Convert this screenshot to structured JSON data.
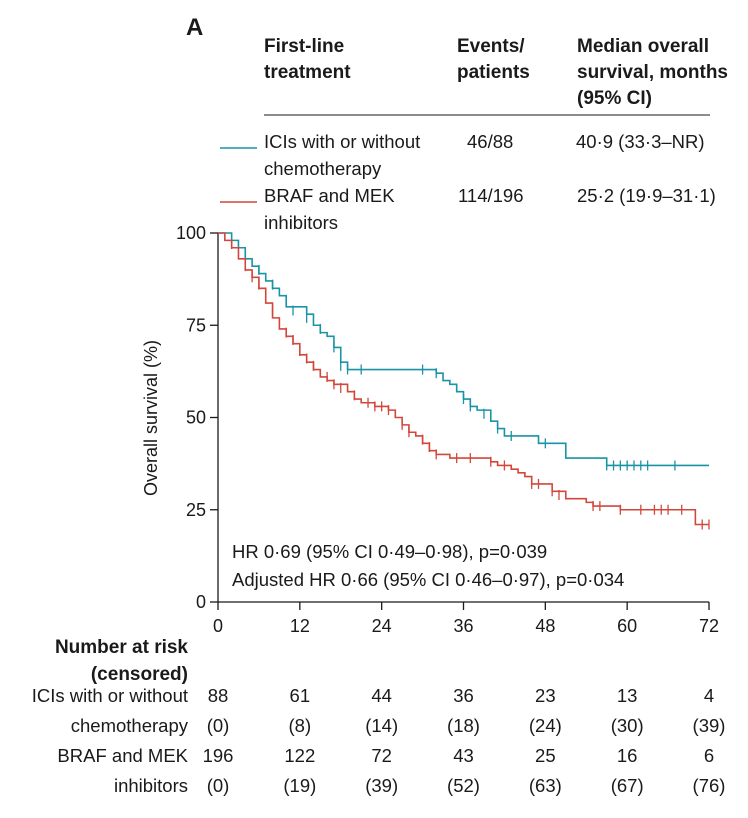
{
  "panel_label": "A",
  "table_header": {
    "treatment": [
      "First-line",
      "treatment"
    ],
    "events": [
      "Events/",
      "patients"
    ],
    "median": [
      "Median overall",
      "survival, months",
      "(95% CI)"
    ]
  },
  "legend": [
    {
      "label": [
        "ICIs with or without",
        "chemotherapy"
      ],
      "events": "46/88",
      "median": "40·9 (33·3–NR)",
      "color": "#1a93a6"
    },
    {
      "label": [
        "BRAF and MEK",
        "inhibitors"
      ],
      "events": "114/196",
      "median": "25·2 (19·9–31·1)",
      "color": "#d2473c"
    }
  ],
  "stats": {
    "hr": "HR 0·69 (95% CI 0·49–0·98), p=0·039",
    "adjusted_hr": "Adjusted HR 0·66 (95% CI 0·46–0·97), p=0·034"
  },
  "chart_data": {
    "type": "line",
    "subtype": "kaplan-meier",
    "ylabel": "Overall survival (%)",
    "xlabel": "",
    "xlim": [
      0,
      72
    ],
    "ylim": [
      0,
      100
    ],
    "x_ticks": [
      0,
      12,
      24,
      36,
      48,
      60,
      72
    ],
    "y_ticks": [
      0,
      25,
      50,
      75,
      100
    ],
    "series": [
      {
        "name": "ICIs with or without chemotherapy",
        "color": "#1a93a6",
        "steps": [
          [
            0,
            100
          ],
          [
            2,
            98
          ],
          [
            3,
            96
          ],
          [
            4,
            93
          ],
          [
            5,
            91
          ],
          [
            6,
            89
          ],
          [
            7,
            87
          ],
          [
            8,
            85
          ],
          [
            9,
            83
          ],
          [
            10,
            80
          ],
          [
            13,
            78
          ],
          [
            14,
            75
          ],
          [
            15,
            73
          ],
          [
            16,
            72
          ],
          [
            17,
            69
          ],
          [
            18,
            65
          ],
          [
            19,
            63
          ],
          [
            20,
            63
          ],
          [
            31,
            63
          ],
          [
            32,
            62
          ],
          [
            33,
            60
          ],
          [
            34,
            59
          ],
          [
            35,
            57
          ],
          [
            36,
            55
          ],
          [
            37,
            53
          ],
          [
            38,
            52
          ],
          [
            40,
            49
          ],
          [
            41,
            47
          ],
          [
            42,
            45
          ],
          [
            46,
            45
          ],
          [
            47,
            43
          ],
          [
            50,
            43
          ],
          [
            51,
            39
          ],
          [
            56,
            39
          ],
          [
            57,
            37
          ],
          [
            72,
            37
          ]
        ],
        "censored": [
          [
            6,
            90
          ],
          [
            8,
            86
          ],
          [
            11,
            79
          ],
          [
            13,
            77
          ],
          [
            15,
            74
          ],
          [
            17,
            69
          ],
          [
            18,
            64
          ],
          [
            19,
            63
          ],
          [
            21,
            63
          ],
          [
            30,
            63
          ],
          [
            32,
            62
          ],
          [
            36,
            55
          ],
          [
            37,
            53
          ],
          [
            39,
            51
          ],
          [
            41,
            47
          ],
          [
            43,
            45
          ],
          [
            48,
            43
          ],
          [
            51,
            41
          ],
          [
            57,
            37
          ],
          [
            58,
            37
          ],
          [
            59,
            37
          ],
          [
            60,
            37
          ],
          [
            61,
            37
          ],
          [
            62,
            37
          ],
          [
            63,
            37
          ],
          [
            67,
            37
          ]
        ]
      },
      {
        "name": "BRAF and MEK inhibitors",
        "color": "#d2473c",
        "steps": [
          [
            0,
            100
          ],
          [
            1,
            98
          ],
          [
            2,
            96
          ],
          [
            3,
            93
          ],
          [
            4,
            90
          ],
          [
            5,
            88
          ],
          [
            6,
            85
          ],
          [
            7,
            81
          ],
          [
            8,
            77
          ],
          [
            9,
            74
          ],
          [
            10,
            72
          ],
          [
            11,
            70
          ],
          [
            12,
            67
          ],
          [
            13,
            65
          ],
          [
            14,
            63
          ],
          [
            15,
            61
          ],
          [
            16,
            60
          ],
          [
            17,
            59
          ],
          [
            19,
            57
          ],
          [
            20,
            55
          ],
          [
            21,
            54
          ],
          [
            23,
            53
          ],
          [
            24,
            53
          ],
          [
            25,
            52
          ],
          [
            26,
            50
          ],
          [
            27,
            48
          ],
          [
            28,
            46
          ],
          [
            29,
            45
          ],
          [
            30,
            43
          ],
          [
            31,
            41
          ],
          [
            32,
            40
          ],
          [
            33,
            40
          ],
          [
            34,
            39
          ],
          [
            39,
            39
          ],
          [
            40,
            38
          ],
          [
            41,
            37
          ],
          [
            43,
            36
          ],
          [
            44,
            35
          ],
          [
            45,
            34
          ],
          [
            46,
            32
          ],
          [
            48,
            32
          ],
          [
            49,
            30
          ],
          [
            51,
            28
          ],
          [
            54,
            27
          ],
          [
            55,
            26
          ],
          [
            58,
            26
          ],
          [
            59,
            25
          ],
          [
            69,
            25
          ],
          [
            70,
            21
          ],
          [
            72,
            21
          ]
        ],
        "censored": [
          [
            2,
            97
          ],
          [
            4,
            91
          ],
          [
            5,
            88
          ],
          [
            6,
            86
          ],
          [
            7,
            83
          ],
          [
            8,
            79
          ],
          [
            10,
            73
          ],
          [
            11,
            71
          ],
          [
            12,
            68
          ],
          [
            13,
            66
          ],
          [
            14,
            64
          ],
          [
            16,
            61
          ],
          [
            17,
            59
          ],
          [
            18,
            58
          ],
          [
            20,
            56
          ],
          [
            22,
            54
          ],
          [
            23,
            53
          ],
          [
            24,
            53
          ],
          [
            25,
            52
          ],
          [
            27,
            48
          ],
          [
            28,
            46
          ],
          [
            30,
            44
          ],
          [
            31,
            42
          ],
          [
            32,
            40
          ],
          [
            35,
            39
          ],
          [
            37,
            39
          ],
          [
            40,
            38
          ],
          [
            42,
            37
          ],
          [
            46,
            32
          ],
          [
            47,
            32
          ],
          [
            49,
            30
          ],
          [
            50,
            29
          ],
          [
            55,
            26
          ],
          [
            56,
            26
          ],
          [
            59,
            25
          ],
          [
            62,
            25
          ],
          [
            64,
            25
          ],
          [
            65,
            25
          ],
          [
            66,
            25
          ],
          [
            68,
            25
          ],
          [
            71,
            21
          ],
          [
            72,
            21
          ]
        ]
      }
    ]
  },
  "risk_table": {
    "title": [
      "Number at risk",
      "(censored)"
    ],
    "rows": [
      {
        "label": [
          "ICIs with or without",
          "chemotherapy"
        ],
        "at_risk": [
          "88",
          "61",
          "44",
          "36",
          "23",
          "13",
          "4"
        ],
        "censored": [
          "(0)",
          "(8)",
          "(14)",
          "(18)",
          "(24)",
          "(30)",
          "(39)"
        ]
      },
      {
        "label": [
          "BRAF and MEK",
          "inhibitors"
        ],
        "at_risk": [
          "196",
          "122",
          "72",
          "43",
          "25",
          "16",
          "6"
        ],
        "censored": [
          "(0)",
          "(19)",
          "(39)",
          "(52)",
          "(63)",
          "(67)",
          "(76)"
        ]
      }
    ]
  }
}
